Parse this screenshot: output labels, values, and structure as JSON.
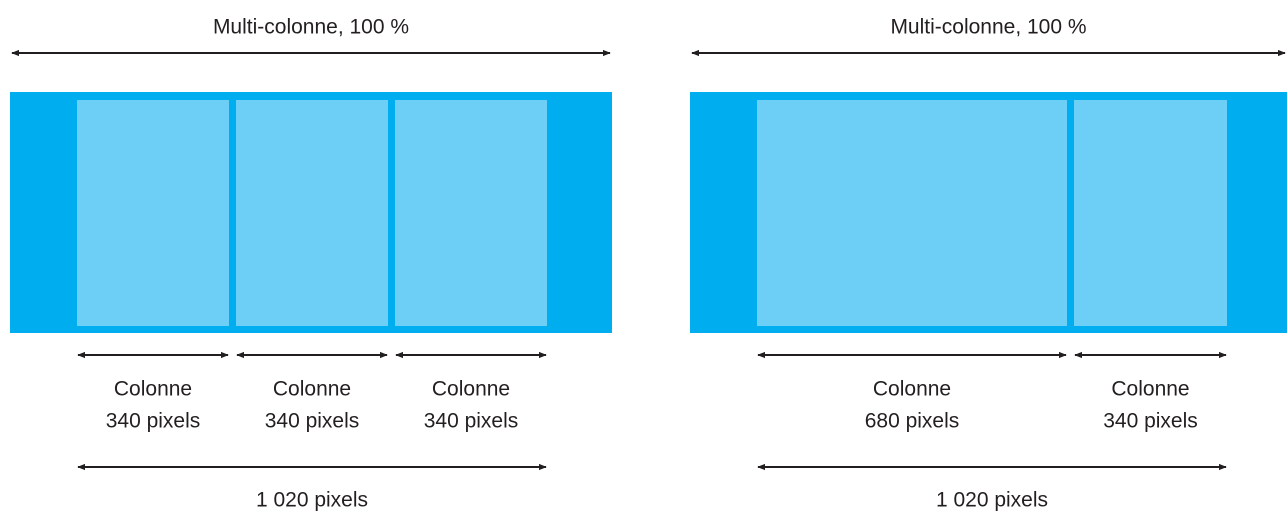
{
  "diagrams": [
    {
      "title": "Multi-colonne, 100 %",
      "columns": [
        {
          "label": "Colonne",
          "width": "340 pixels"
        },
        {
          "label": "Colonne",
          "width": "340 pixels"
        },
        {
          "label": "Colonne",
          "width": "340 pixels"
        }
      ],
      "total": "1 020 pixels"
    },
    {
      "title": "Multi-colonne, 100 %",
      "columns": [
        {
          "label": "Colonne",
          "width": "680 pixels"
        },
        {
          "label": "Colonne",
          "width": "340 pixels"
        }
      ],
      "total": "1 020 pixels"
    }
  ]
}
